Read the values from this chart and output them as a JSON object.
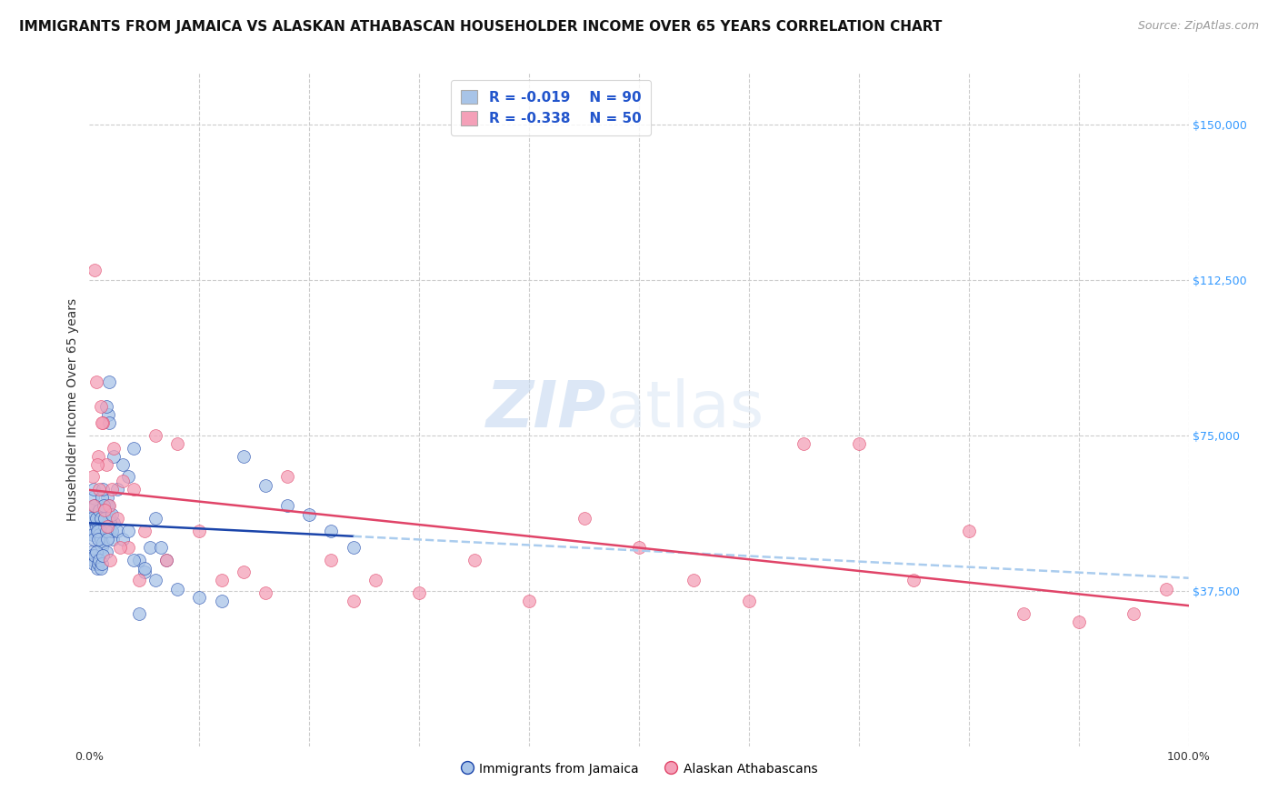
{
  "title": "IMMIGRANTS FROM JAMAICA VS ALASKAN ATHABASCAN HOUSEHOLDER INCOME OVER 65 YEARS CORRELATION CHART",
  "source": "Source: ZipAtlas.com",
  "ylabel": "Householder Income Over 65 years",
  "ytick_labels": [
    "$37,500",
    "$75,000",
    "$112,500",
    "$150,000"
  ],
  "ytick_values": [
    37500,
    75000,
    112500,
    150000
  ],
  "ylim": [
    0,
    162500
  ],
  "xlim": [
    0,
    1.0
  ],
  "legend_blue_R": "R = -0.019",
  "legend_blue_N": "N = 90",
  "legend_pink_R": "R = -0.338",
  "legend_pink_N": "N = 50",
  "legend_label_blue": "Immigrants from Jamaica",
  "legend_label_pink": "Alaskan Athabascans",
  "color_blue": "#a8c4e8",
  "color_pink": "#f4a0b8",
  "trendline_blue_color": "#1a44aa",
  "trendline_pink_color": "#e04468",
  "trendline_blue_dashed_color": "#aaccee",
  "watermark_zip": "ZIP",
  "watermark_atlas": "atlas",
  "grid_color": "#cccccc",
  "bg_color": "#ffffff",
  "title_fontsize": 11,
  "source_fontsize": 9,
  "ylabel_fontsize": 10,
  "tick_fontsize": 9,
  "blue_x": [
    0.001,
    0.002,
    0.003,
    0.004,
    0.005,
    0.006,
    0.007,
    0.008,
    0.009,
    0.01,
    0.011,
    0.012,
    0.013,
    0.014,
    0.015,
    0.016,
    0.017,
    0.018,
    0.019,
    0.02,
    0.021,
    0.022,
    0.001,
    0.002,
    0.003,
    0.004,
    0.005,
    0.006,
    0.007,
    0.008,
    0.009,
    0.01,
    0.011,
    0.012,
    0.013,
    0.014,
    0.015,
    0.016,
    0.017,
    0.018,
    0.019,
    0.02,
    0.025,
    0.03,
    0.035,
    0.04,
    0.045,
    0.05,
    0.055,
    0.06,
    0.065,
    0.07,
    0.001,
    0.002,
    0.003,
    0.004,
    0.005,
    0.006,
    0.007,
    0.008,
    0.009,
    0.01,
    0.011,
    0.012,
    0.013,
    0.014,
    0.015,
    0.016,
    0.017,
    0.018,
    0.02,
    0.025,
    0.03,
    0.035,
    0.04,
    0.045,
    0.05,
    0.06,
    0.08,
    0.1,
    0.12,
    0.14,
    0.16,
    0.18,
    0.2,
    0.22,
    0.24,
    0.015,
    0.018,
    0.022
  ],
  "blue_y": [
    55000,
    52000,
    51000,
    50000,
    56000,
    53000,
    54000,
    52000,
    51000,
    50000,
    48000,
    49000,
    55000,
    53000,
    47000,
    53000,
    55000,
    52000,
    54000,
    52000,
    50000,
    54000,
    47000,
    46000,
    45000,
    44000,
    46000,
    47000,
    43000,
    44000,
    45000,
    43000,
    44000,
    46000,
    55000,
    57000,
    58000,
    60000,
    58000,
    56000,
    54000,
    52000,
    62000,
    68000,
    65000,
    72000,
    45000,
    42000,
    48000,
    55000,
    48000,
    45000,
    57000,
    55000,
    60000,
    62000,
    58000,
    55000,
    52000,
    50000,
    57000,
    55000,
    60000,
    62000,
    58000,
    55000,
    52000,
    50000,
    80000,
    88000,
    56000,
    52000,
    50000,
    52000,
    45000,
    32000,
    43000,
    40000,
    38000,
    36000,
    35000,
    70000,
    63000,
    58000,
    56000,
    52000,
    48000,
    82000,
    78000,
    70000
  ],
  "pink_x": [
    0.003,
    0.005,
    0.008,
    0.01,
    0.012,
    0.015,
    0.018,
    0.02,
    0.022,
    0.025,
    0.03,
    0.035,
    0.04,
    0.05,
    0.06,
    0.08,
    0.1,
    0.14,
    0.18,
    0.22,
    0.26,
    0.3,
    0.35,
    0.4,
    0.45,
    0.5,
    0.55,
    0.6,
    0.65,
    0.7,
    0.75,
    0.8,
    0.85,
    0.9,
    0.95,
    0.98,
    0.004,
    0.006,
    0.007,
    0.009,
    0.011,
    0.014,
    0.016,
    0.019,
    0.028,
    0.045,
    0.07,
    0.12,
    0.16,
    0.24
  ],
  "pink_y": [
    65000,
    115000,
    70000,
    82000,
    78000,
    68000,
    58000,
    62000,
    72000,
    55000,
    64000,
    48000,
    62000,
    52000,
    75000,
    73000,
    52000,
    42000,
    65000,
    45000,
    40000,
    37000,
    45000,
    35000,
    55000,
    48000,
    40000,
    35000,
    73000,
    73000,
    40000,
    52000,
    32000,
    30000,
    32000,
    38000,
    58000,
    88000,
    68000,
    62000,
    78000,
    57000,
    53000,
    45000,
    48000,
    40000,
    45000,
    40000,
    37000,
    35000
  ]
}
